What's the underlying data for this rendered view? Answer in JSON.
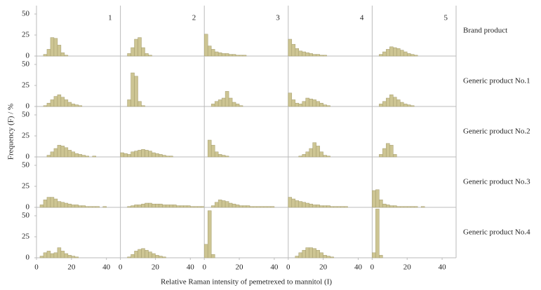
{
  "chart_data": {
    "type": "histogram",
    "y_label": "Frequency (F) / %",
    "x_label": "Relative Raman intensity of pemetrexed to mannitol (I)",
    "column_labels": [
      "1",
      "2",
      "3",
      "4",
      "5"
    ],
    "row_labels": [
      "Brand product",
      "Generic product No.1",
      "Generic product No.2",
      "Generic product No.3",
      "Generic product No.4"
    ],
    "bins": [
      0,
      2,
      4,
      6,
      8,
      10,
      12,
      14,
      16,
      18,
      20,
      22,
      24,
      26,
      28,
      30,
      32,
      34,
      36,
      38,
      40,
      42,
      44,
      46,
      48
    ],
    "xlim": [
      0,
      48
    ],
    "xticks": [
      0,
      20,
      40
    ],
    "ylim": [
      0,
      60
    ],
    "yticks": [
      50,
      25,
      0
    ],
    "color": "#cdc593",
    "panels": [
      [
        [
          0,
          0,
          2,
          8,
          22,
          21,
          13,
          4,
          1,
          0,
          0,
          0,
          0,
          0,
          0,
          0,
          0,
          0,
          0,
          0,
          0,
          0,
          0,
          0
        ],
        [
          0,
          0,
          3,
          10,
          20,
          22,
          10,
          3,
          1,
          0,
          0,
          0,
          0,
          0,
          0,
          0,
          0,
          0,
          0,
          0,
          0,
          0,
          0,
          0
        ],
        [
          26,
          12,
          8,
          5,
          4,
          3,
          3,
          2,
          2,
          1,
          1,
          1,
          0,
          0,
          0,
          0,
          0,
          0,
          0,
          0,
          0,
          0,
          0,
          0
        ],
        [
          20,
          14,
          9,
          6,
          5,
          4,
          3,
          2,
          2,
          1,
          1,
          0,
          0,
          0,
          0,
          0,
          0,
          0,
          0,
          0,
          0,
          0,
          0,
          0
        ],
        [
          0,
          0,
          2,
          5,
          8,
          11,
          10,
          9,
          7,
          5,
          3,
          2,
          1,
          0,
          0,
          0,
          0,
          0,
          0,
          0,
          0,
          0,
          0,
          0
        ]
      ],
      [
        [
          0,
          0,
          1,
          4,
          8,
          12,
          14,
          11,
          8,
          5,
          3,
          2,
          1,
          0,
          0,
          0,
          0,
          0,
          0,
          0,
          0,
          0,
          0,
          0
        ],
        [
          0,
          0,
          8,
          40,
          36,
          6,
          1,
          0,
          0,
          0,
          0,
          0,
          0,
          0,
          0,
          0,
          0,
          0,
          0,
          0,
          0,
          0,
          0,
          0
        ],
        [
          0,
          0,
          3,
          6,
          8,
          10,
          18,
          10,
          5,
          3,
          1,
          0,
          0,
          0,
          0,
          0,
          0,
          0,
          0,
          0,
          0,
          0,
          0,
          0
        ],
        [
          16,
          8,
          4,
          3,
          6,
          10,
          9,
          8,
          6,
          4,
          2,
          1,
          0,
          0,
          0,
          0,
          0,
          0,
          0,
          0,
          0,
          0,
          0,
          0
        ],
        [
          0,
          0,
          3,
          6,
          10,
          14,
          11,
          8,
          5,
          3,
          2,
          1,
          0,
          0,
          0,
          0,
          0,
          0,
          0,
          0,
          0,
          0,
          0,
          0
        ]
      ],
      [
        [
          0,
          0,
          0,
          2,
          6,
          10,
          14,
          13,
          11,
          8,
          6,
          4,
          3,
          2,
          1,
          0,
          1,
          0,
          0,
          0,
          0,
          0,
          0,
          0
        ],
        [
          5,
          4,
          3,
          6,
          7,
          8,
          9,
          8,
          7,
          5,
          4,
          3,
          2,
          1,
          1,
          0,
          0,
          0,
          0,
          0,
          0,
          0,
          0,
          0
        ],
        [
          0,
          20,
          14,
          6,
          3,
          2,
          1,
          0,
          0,
          0,
          0,
          0,
          0,
          0,
          0,
          0,
          0,
          0,
          0,
          0,
          0,
          0,
          0,
          0
        ],
        [
          0,
          0,
          0,
          1,
          3,
          6,
          10,
          17,
          13,
          6,
          2,
          1,
          0,
          0,
          0,
          0,
          0,
          0,
          0,
          0,
          0,
          0,
          0,
          0
        ],
        [
          0,
          0,
          3,
          10,
          16,
          14,
          3,
          0,
          0,
          0,
          0,
          0,
          0,
          0,
          0,
          0,
          0,
          0,
          0,
          0,
          0,
          0,
          0,
          0
        ]
      ],
      [
        [
          0,
          3,
          9,
          12,
          12,
          10,
          7,
          6,
          5,
          4,
          3,
          3,
          2,
          2,
          1,
          1,
          1,
          1,
          0,
          1,
          0,
          0,
          0,
          0
        ],
        [
          0,
          0,
          1,
          2,
          3,
          3,
          4,
          5,
          5,
          4,
          4,
          4,
          3,
          3,
          3,
          3,
          2,
          2,
          2,
          2,
          1,
          1,
          1,
          1
        ],
        [
          0,
          0,
          2,
          6,
          9,
          8,
          7,
          5,
          4,
          3,
          2,
          2,
          2,
          1,
          1,
          1,
          1,
          1,
          1,
          1,
          0,
          0,
          0,
          0
        ],
        [
          12,
          10,
          8,
          7,
          6,
          5,
          4,
          3,
          3,
          2,
          2,
          2,
          1,
          1,
          1,
          1,
          1,
          0,
          0,
          0,
          0,
          0,
          0,
          0
        ],
        [
          20,
          21,
          9,
          4,
          3,
          2,
          2,
          1,
          1,
          1,
          1,
          1,
          1,
          0,
          1,
          0,
          0,
          0,
          0,
          0,
          0,
          0,
          0,
          0
        ]
      ],
      [
        [
          0,
          2,
          6,
          8,
          5,
          6,
          12,
          8,
          5,
          3,
          2,
          1,
          0,
          0,
          0,
          0,
          0,
          0,
          0,
          0,
          0,
          0,
          0,
          0
        ],
        [
          0,
          0,
          1,
          4,
          8,
          10,
          11,
          9,
          7,
          5,
          3,
          2,
          1,
          0,
          0,
          0,
          0,
          0,
          0,
          0,
          0,
          0,
          0,
          0
        ],
        [
          16,
          56,
          4,
          0,
          0,
          0,
          0,
          0,
          0,
          0,
          0,
          0,
          0,
          0,
          0,
          0,
          0,
          0,
          0,
          0,
          0,
          0,
          0,
          0
        ],
        [
          0,
          0,
          2,
          6,
          9,
          12,
          12,
          11,
          9,
          6,
          3,
          2,
          1,
          0,
          0,
          0,
          0,
          0,
          0,
          0,
          0,
          0,
          0,
          0
        ],
        [
          6,
          58,
          3,
          0,
          0,
          0,
          0,
          0,
          0,
          0,
          0,
          0,
          0,
          0,
          0,
          0,
          0,
          0,
          0,
          0,
          0,
          0,
          0,
          0
        ]
      ]
    ]
  }
}
